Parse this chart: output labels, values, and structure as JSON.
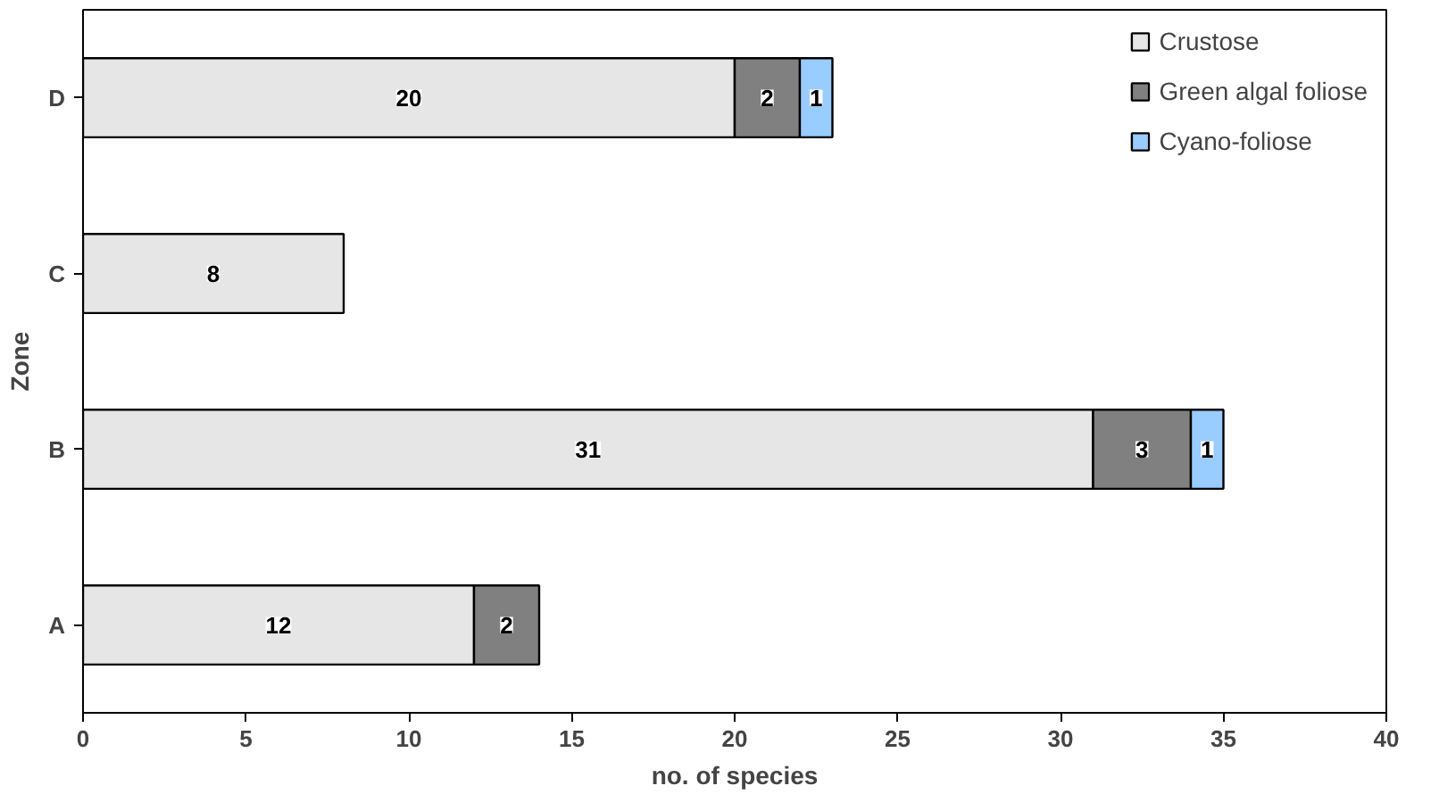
{
  "chart_data": {
    "type": "bar",
    "orientation": "horizontal",
    "stacked": true,
    "ylabel": "Zone",
    "xlabel": "no. of species",
    "categories": [
      "D",
      "C",
      "B",
      "A"
    ],
    "series": [
      {
        "name": "Crustose",
        "color": "#e6e6e6",
        "values": [
          20,
          8,
          31,
          12
        ]
      },
      {
        "name": "Green algal foliose",
        "color": "#808080",
        "values": [
          2,
          null,
          3,
          2
        ]
      },
      {
        "name": "Cyano-foliose",
        "color": "#99ccff",
        "values": [
          1,
          null,
          1,
          null
        ]
      }
    ],
    "xlim": [
      0,
      40
    ],
    "xticks": [
      0,
      5,
      10,
      15,
      20,
      25,
      30,
      35,
      40
    ],
    "data_labels": true,
    "grid": false,
    "legend": "top right"
  }
}
